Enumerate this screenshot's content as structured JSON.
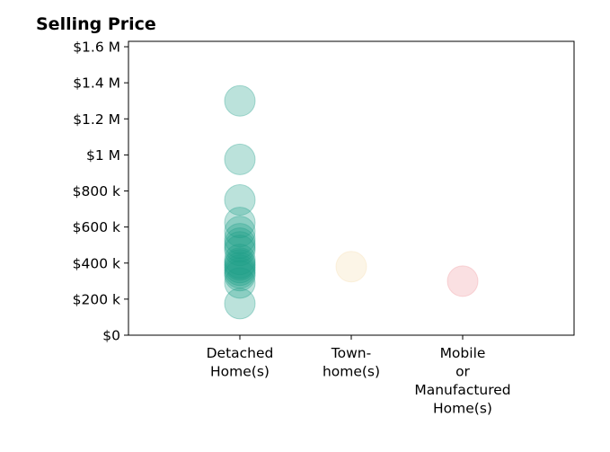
{
  "chart_data": {
    "type": "scatter",
    "title": "Selling Price",
    "xlabel": "",
    "ylabel": "",
    "categories": [
      [
        "Detached",
        "Home(s)"
      ],
      [
        "Town-",
        "home(s)"
      ],
      [
        "Mobile",
        "or",
        "Manufactured",
        "Home(s)"
      ]
    ],
    "xlim": [
      -1,
      3
    ],
    "ylim": [
      0,
      1630000
    ],
    "yticks": [
      0,
      200000,
      400000,
      600000,
      800000,
      1000000,
      1200000,
      1400000,
      1600000
    ],
    "ytick_labels": [
      "$0",
      "$200 k",
      "$400 k",
      "$600 k",
      "$800 k",
      "$1 M",
      "$1.2 M",
      "$1.4 M",
      "$1.6 M"
    ],
    "grid": false,
    "series": [
      {
        "category_index": 0,
        "color": "#1f9e89",
        "values": [
          1300000,
          975000,
          750000,
          625000,
          575000,
          535000,
          510000,
          490000,
          470000,
          420000,
          400000,
          390000,
          375000,
          360000,
          345000,
          330000,
          290000,
          175000
        ]
      },
      {
        "category_index": 1,
        "color": "#f5ddb0",
        "values": [
          380000
        ]
      },
      {
        "category_index": 2,
        "color": "#f0979f",
        "values": [
          300000
        ]
      }
    ]
  }
}
